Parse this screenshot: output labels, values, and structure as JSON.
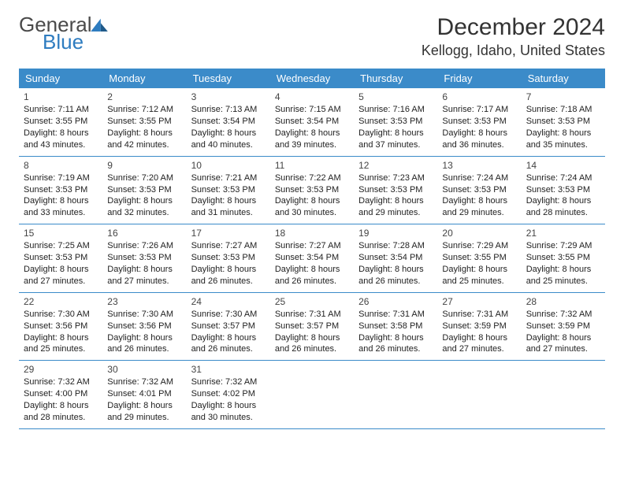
{
  "logo": {
    "text1": "General",
    "text2": "Blue"
  },
  "title": "December 2024",
  "location": "Kellogg, Idaho, United States",
  "colors": {
    "header_bg": "#3b8bc9",
    "week_border": "#3b8bc9",
    "background": "#ffffff",
    "text": "#333333",
    "logo_gray": "#5a5a5a",
    "logo_blue": "#2e7cc0"
  },
  "day_headers": [
    "Sunday",
    "Monday",
    "Tuesday",
    "Wednesday",
    "Thursday",
    "Friday",
    "Saturday"
  ],
  "weeks": [
    [
      {
        "n": "1",
        "sr": "7:11 AM",
        "ss": "3:55 PM",
        "dl": "8 hours and 43 minutes."
      },
      {
        "n": "2",
        "sr": "7:12 AM",
        "ss": "3:55 PM",
        "dl": "8 hours and 42 minutes."
      },
      {
        "n": "3",
        "sr": "7:13 AM",
        "ss": "3:54 PM",
        "dl": "8 hours and 40 minutes."
      },
      {
        "n": "4",
        "sr": "7:15 AM",
        "ss": "3:54 PM",
        "dl": "8 hours and 39 minutes."
      },
      {
        "n": "5",
        "sr": "7:16 AM",
        "ss": "3:53 PM",
        "dl": "8 hours and 37 minutes."
      },
      {
        "n": "6",
        "sr": "7:17 AM",
        "ss": "3:53 PM",
        "dl": "8 hours and 36 minutes."
      },
      {
        "n": "7",
        "sr": "7:18 AM",
        "ss": "3:53 PM",
        "dl": "8 hours and 35 minutes."
      }
    ],
    [
      {
        "n": "8",
        "sr": "7:19 AM",
        "ss": "3:53 PM",
        "dl": "8 hours and 33 minutes."
      },
      {
        "n": "9",
        "sr": "7:20 AM",
        "ss": "3:53 PM",
        "dl": "8 hours and 32 minutes."
      },
      {
        "n": "10",
        "sr": "7:21 AM",
        "ss": "3:53 PM",
        "dl": "8 hours and 31 minutes."
      },
      {
        "n": "11",
        "sr": "7:22 AM",
        "ss": "3:53 PM",
        "dl": "8 hours and 30 minutes."
      },
      {
        "n": "12",
        "sr": "7:23 AM",
        "ss": "3:53 PM",
        "dl": "8 hours and 29 minutes."
      },
      {
        "n": "13",
        "sr": "7:24 AM",
        "ss": "3:53 PM",
        "dl": "8 hours and 29 minutes."
      },
      {
        "n": "14",
        "sr": "7:24 AM",
        "ss": "3:53 PM",
        "dl": "8 hours and 28 minutes."
      }
    ],
    [
      {
        "n": "15",
        "sr": "7:25 AM",
        "ss": "3:53 PM",
        "dl": "8 hours and 27 minutes."
      },
      {
        "n": "16",
        "sr": "7:26 AM",
        "ss": "3:53 PM",
        "dl": "8 hours and 27 minutes."
      },
      {
        "n": "17",
        "sr": "7:27 AM",
        "ss": "3:53 PM",
        "dl": "8 hours and 26 minutes."
      },
      {
        "n": "18",
        "sr": "7:27 AM",
        "ss": "3:54 PM",
        "dl": "8 hours and 26 minutes."
      },
      {
        "n": "19",
        "sr": "7:28 AM",
        "ss": "3:54 PM",
        "dl": "8 hours and 26 minutes."
      },
      {
        "n": "20",
        "sr": "7:29 AM",
        "ss": "3:55 PM",
        "dl": "8 hours and 25 minutes."
      },
      {
        "n": "21",
        "sr": "7:29 AM",
        "ss": "3:55 PM",
        "dl": "8 hours and 25 minutes."
      }
    ],
    [
      {
        "n": "22",
        "sr": "7:30 AM",
        "ss": "3:56 PM",
        "dl": "8 hours and 25 minutes."
      },
      {
        "n": "23",
        "sr": "7:30 AM",
        "ss": "3:56 PM",
        "dl": "8 hours and 26 minutes."
      },
      {
        "n": "24",
        "sr": "7:30 AM",
        "ss": "3:57 PM",
        "dl": "8 hours and 26 minutes."
      },
      {
        "n": "25",
        "sr": "7:31 AM",
        "ss": "3:57 PM",
        "dl": "8 hours and 26 minutes."
      },
      {
        "n": "26",
        "sr": "7:31 AM",
        "ss": "3:58 PM",
        "dl": "8 hours and 26 minutes."
      },
      {
        "n": "27",
        "sr": "7:31 AM",
        "ss": "3:59 PM",
        "dl": "8 hours and 27 minutes."
      },
      {
        "n": "28",
        "sr": "7:32 AM",
        "ss": "3:59 PM",
        "dl": "8 hours and 27 minutes."
      }
    ],
    [
      {
        "n": "29",
        "sr": "7:32 AM",
        "ss": "4:00 PM",
        "dl": "8 hours and 28 minutes."
      },
      {
        "n": "30",
        "sr": "7:32 AM",
        "ss": "4:01 PM",
        "dl": "8 hours and 29 minutes."
      },
      {
        "n": "31",
        "sr": "7:32 AM",
        "ss": "4:02 PM",
        "dl": "8 hours and 30 minutes."
      },
      null,
      null,
      null,
      null
    ]
  ],
  "labels": {
    "sunrise": "Sunrise:",
    "sunset": "Sunset:",
    "daylight": "Daylight:"
  }
}
